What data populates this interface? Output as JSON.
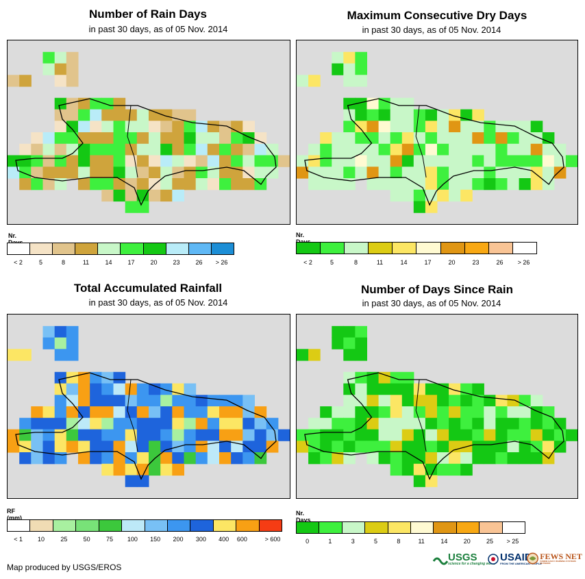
{
  "credit": "Map produced by USGS/EROS",
  "logos": {
    "usgs": "USGS",
    "usgs_tagline": "science for a changing world",
    "usaid": "USAID",
    "usaid_tagline": "FROM THE AMERICAN PEOPLE",
    "fews": "FEWS NET",
    "fews_tagline": "FAMINE EARLY WARNING SYSTEMS NETWORK"
  },
  "panels": [
    {
      "title": "Number of Rain Days",
      "subtitle": "in past 30 days, as of 05 Nov. 2014",
      "legend_label": "Nr. Days",
      "legend_colors": [
        "#ffffff",
        "#f5e3c6",
        "#e1c48c",
        "#cfa43c",
        "#c8f7c8",
        "#3ef03e",
        "#14c814",
        "#b9ecf8",
        "#5fb8f5",
        "#1c8ed6"
      ],
      "legend_ticks": [
        "< 2",
        "5",
        "8",
        "11",
        "14",
        "17",
        "20",
        "23",
        "26",
        "> 26"
      ]
    },
    {
      "title": "Maximum Consecutive Dry Days",
      "subtitle": "in past 30 days, as of 05 Nov. 2014",
      "legend_label": "Nr. Days",
      "legend_colors": [
        "#14c814",
        "#3ef03e",
        "#c8f7c8",
        "#dccc14",
        "#fce664",
        "#fffad2",
        "#e09614",
        "#f8a814",
        "#f9c495",
        "#ffffff"
      ],
      "legend_ticks": [
        "< 2",
        "5",
        "8",
        "11",
        "14",
        "17",
        "20",
        "23",
        "26",
        "> 26"
      ]
    },
    {
      "title": "Total Accumulated Rainfall",
      "subtitle": "in past 30 days, as of 05 Nov. 2014",
      "legend_label": "RF (mm)",
      "legend_colors": [
        "#ffffff",
        "#f0dcb4",
        "#a8f0a0",
        "#78e278",
        "#3cc83c",
        "#bde9f8",
        "#78c0f5",
        "#3c96f0",
        "#1e64dc",
        "#fce664",
        "#f8a014",
        "#f53c14"
      ],
      "legend_ticks": [
        "< 1",
        "10",
        "25",
        "50",
        "75",
        "100",
        "150",
        "200",
        "300",
        "400",
        "600",
        "> 600"
      ]
    },
    {
      "title": "Number of Days Since Rain",
      "subtitle": "in past 30 days, as of 05 Nov. 2014",
      "legend_label": "Nr. Days",
      "legend_colors": [
        "#14c814",
        "#3ef03e",
        "#c8f7c8",
        "#dccc14",
        "#fce664",
        "#fffad2",
        "#e09614",
        "#f8a814",
        "#f9c495",
        "#ffffff"
      ],
      "legend_ticks": [
        "0",
        "1",
        "3",
        "5",
        "8",
        "11",
        "14",
        "20",
        "25",
        "> 25"
      ]
    }
  ]
}
